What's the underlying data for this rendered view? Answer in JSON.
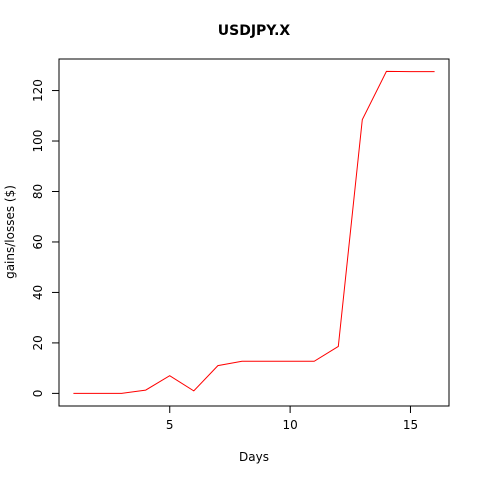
{
  "chart_data": {
    "type": "line",
    "title": "USDJPY.X",
    "xlabel": "Days",
    "ylabel": "gains/losses ($)",
    "xlim": [
      0.4,
      16.6
    ],
    "ylim": [
      -5,
      132.5
    ],
    "x_ticks": [
      5,
      10,
      15
    ],
    "y_ticks": [
      0,
      20,
      40,
      60,
      80,
      100,
      120
    ],
    "grid": false,
    "series": [
      {
        "color": "#ff0000",
        "x": [
          1,
          2,
          3,
          4,
          5,
          6,
          7,
          8,
          9,
          10,
          11,
          12,
          13,
          14,
          15,
          16
        ],
        "y": [
          0,
          0,
          0,
          1.3,
          7,
          1,
          11,
          12.7,
          12.7,
          12.7,
          12.7,
          18.6,
          108.5,
          127.6,
          127.5,
          127.5
        ]
      }
    ]
  }
}
